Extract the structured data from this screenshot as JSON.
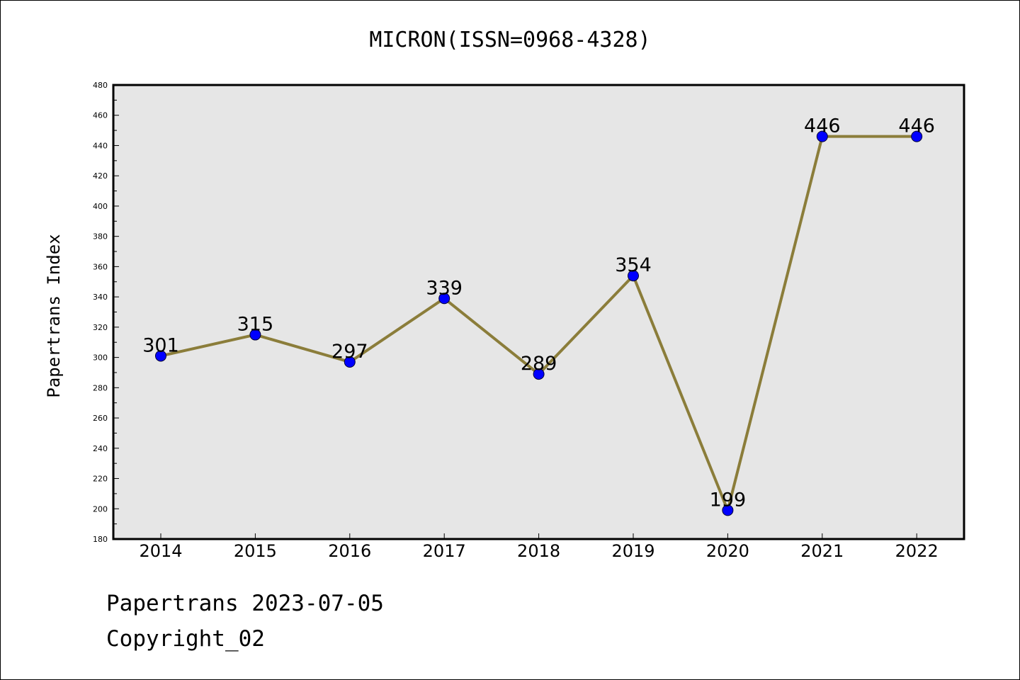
{
  "chart_data": {
    "type": "line",
    "title": "MICRON(ISSN=0968-4328)",
    "xlabel": "",
    "ylabel": "Papertrans Index",
    "categories": [
      "2014",
      "2015",
      "2016",
      "2017",
      "2018",
      "2019",
      "2020",
      "2021",
      "2022"
    ],
    "values": [
      301,
      315,
      297,
      339,
      289,
      354,
      199,
      446,
      446
    ],
    "data_labels": [
      "301",
      "315",
      "297",
      "339",
      "289",
      "354",
      "199",
      "446",
      "446"
    ],
    "ylim": [
      180,
      480
    ],
    "y_ticks": [
      "180",
      "200",
      "220",
      "240",
      "260",
      "280",
      "300",
      "320",
      "340",
      "360",
      "380",
      "400",
      "420",
      "440",
      "460",
      "480"
    ],
    "grid": false,
    "legend": "none",
    "line_color": "#8b7d3a",
    "marker_color": "#0000ff",
    "plot_background": "#e6e6e6"
  },
  "footer": {
    "line1": "Papertrans 2023-07-05",
    "line2": "Copyright_02"
  }
}
